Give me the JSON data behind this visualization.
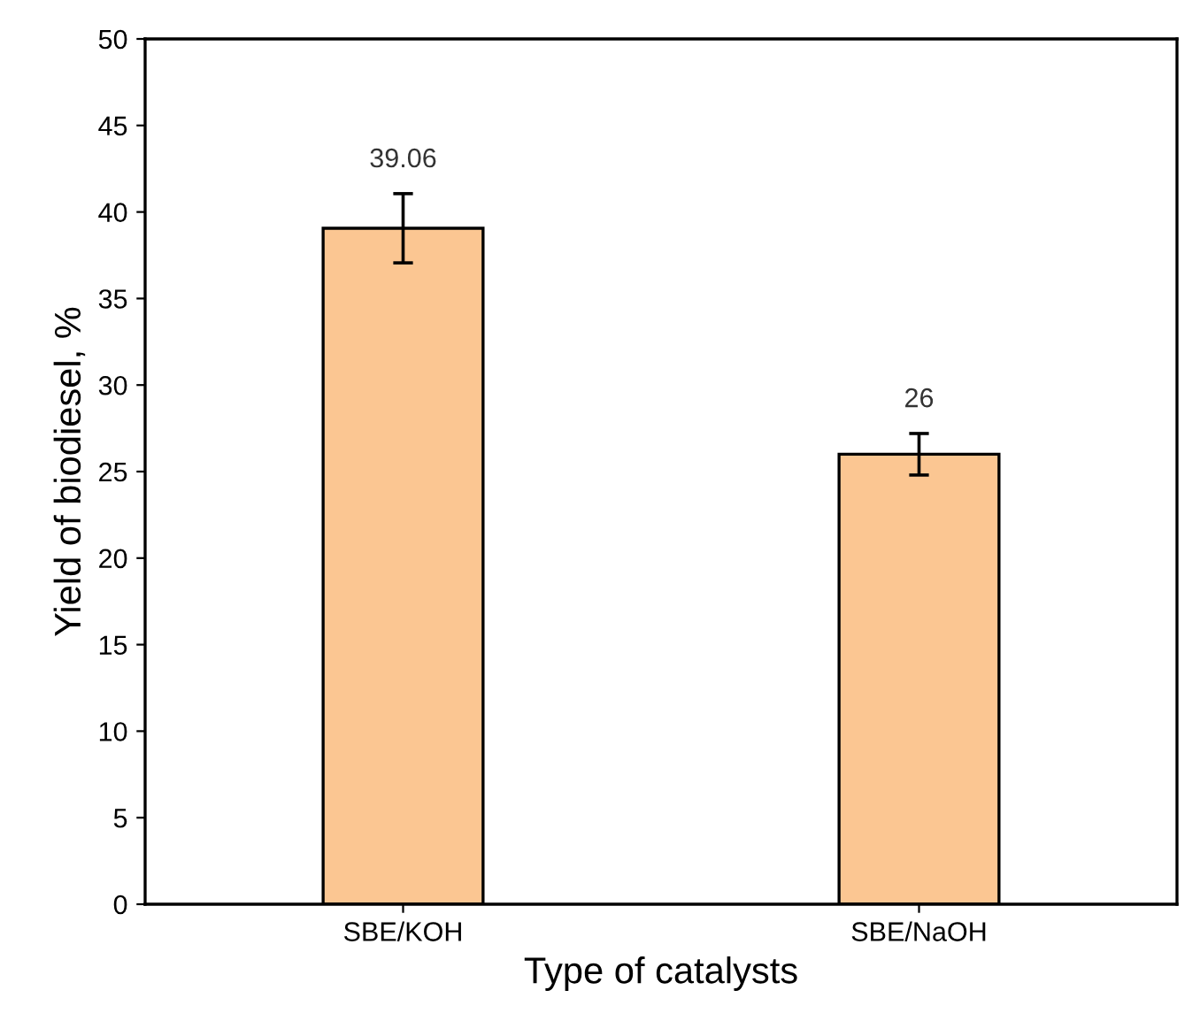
{
  "chart_data": {
    "type": "bar",
    "xlabel": "Type of catalysts",
    "ylabel": "Yield of biodiesel, %",
    "categories": [
      "SBE/KOH",
      "SBE/NaOH"
    ],
    "values": [
      39.06,
      26
    ],
    "errors": [
      2,
      1.2
    ],
    "color": "#fbc692",
    "data_labels": true,
    "ylim": [
      0,
      50
    ],
    "yticks": [
      0,
      5,
      10,
      15,
      20,
      25,
      30,
      35,
      40,
      45,
      50
    ],
    "grid": false
  }
}
